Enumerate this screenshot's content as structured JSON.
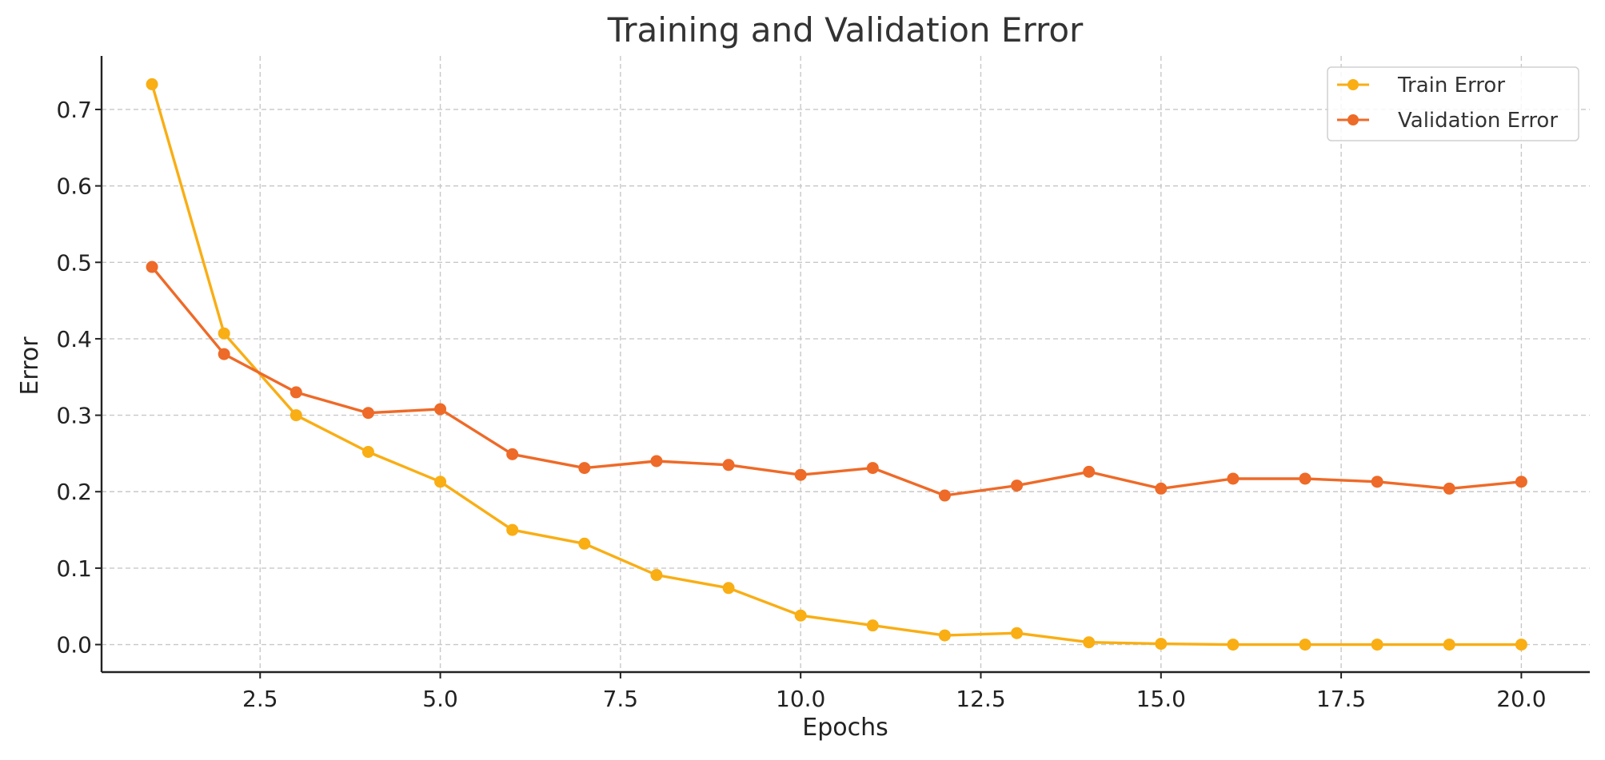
{
  "chart_data": {
    "type": "line",
    "title": "Training and Validation Error",
    "xlabel": "Epochs",
    "ylabel": "Error",
    "xlim": [
      0.3,
      20.95
    ],
    "ylim": [
      -0.036,
      0.77
    ],
    "x_ticks": [
      2.5,
      5.0,
      7.5,
      10.0,
      12.5,
      15.0,
      17.5,
      20.0
    ],
    "x_tick_labels": [
      "2.5",
      "5.0",
      "7.5",
      "10.0",
      "12.5",
      "15.0",
      "17.5",
      "20.0"
    ],
    "y_ticks": [
      0.0,
      0.1,
      0.2,
      0.3,
      0.4,
      0.5,
      0.6,
      0.7
    ],
    "y_tick_labels": [
      "0.0",
      "0.1",
      "0.2",
      "0.3",
      "0.4",
      "0.5",
      "0.6",
      "0.7"
    ],
    "grid": true,
    "legend_position": "top-right",
    "x": [
      1,
      2,
      3,
      4,
      5,
      6,
      7,
      8,
      9,
      10,
      11,
      12,
      13,
      14,
      15,
      16,
      17,
      18,
      19,
      20
    ],
    "series": [
      {
        "name": "Train Error",
        "color": "#F9AE14",
        "values": [
          0.733,
          0.407,
          0.3,
          0.252,
          0.213,
          0.15,
          0.132,
          0.091,
          0.074,
          0.038,
          0.025,
          0.012,
          0.015,
          0.003,
          0.001,
          0.0,
          0.0,
          0.0,
          0.0,
          0.0
        ]
      },
      {
        "name": "Validation Error",
        "color": "#EE6A28",
        "values": [
          0.494,
          0.38,
          0.33,
          0.303,
          0.308,
          0.249,
          0.231,
          0.24,
          0.235,
          0.222,
          0.231,
          0.195,
          0.208,
          0.226,
          0.204,
          0.217,
          0.217,
          0.213,
          0.204,
          0.213
        ]
      }
    ]
  }
}
